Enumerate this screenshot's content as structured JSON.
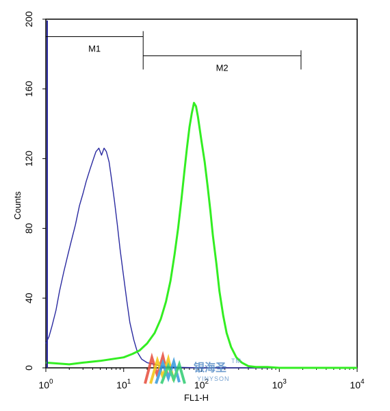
{
  "chart_data": {
    "type": "line",
    "title": "",
    "xlabel": "FL1-H",
    "ylabel": "Counts",
    "x_scale": "log",
    "xlim": [
      1,
      10000
    ],
    "ylim": [
      0,
      200
    ],
    "x_ticks": [
      {
        "base": "10",
        "exp": "0",
        "value": 1
      },
      {
        "base": "10",
        "exp": "1",
        "value": 10
      },
      {
        "base": "10",
        "exp": "2",
        "value": 100
      },
      {
        "base": "10",
        "exp": "3",
        "value": 1000
      },
      {
        "base": "10",
        "exp": "4",
        "value": 10000
      }
    ],
    "y_ticks": [
      "0",
      "40",
      "80",
      "120",
      "160",
      "200"
    ],
    "grid": false,
    "markers": [
      {
        "label": "M1",
        "x_start": 1,
        "x_end": 17.8,
        "y": 190
      },
      {
        "label": "M2",
        "x_start": 17.8,
        "x_end": 1900,
        "y": 179
      }
    ],
    "series": [
      {
        "color": "#2a2aa0",
        "points": [
          [
            1,
            14
          ],
          [
            1.1,
            18
          ],
          [
            1.2,
            24
          ],
          [
            1.35,
            33
          ],
          [
            1.5,
            44
          ],
          [
            1.7,
            55
          ],
          [
            1.9,
            64
          ],
          [
            2.1,
            72
          ],
          [
            2.4,
            82
          ],
          [
            2.7,
            93
          ],
          [
            3.0,
            100
          ],
          [
            3.3,
            107
          ],
          [
            3.7,
            114
          ],
          [
            4.1,
            120
          ],
          [
            4.4,
            124
          ],
          [
            4.8,
            126
          ],
          [
            5.2,
            122
          ],
          [
            5.6,
            126
          ],
          [
            6.0,
            124
          ],
          [
            6.5,
            118
          ],
          [
            7.0,
            108
          ],
          [
            7.6,
            96
          ],
          [
            8.3,
            82
          ],
          [
            9.0,
            68
          ],
          [
            10,
            52
          ],
          [
            11,
            38
          ],
          [
            12,
            26
          ],
          [
            13.5,
            16
          ],
          [
            15,
            9
          ],
          [
            17,
            5
          ],
          [
            20,
            3
          ],
          [
            25,
            2
          ],
          [
            30,
            1
          ],
          [
            40,
            0.5
          ],
          [
            60,
            0.2
          ],
          [
            100,
            0
          ],
          [
            10000,
            0
          ]
        ]
      },
      {
        "color": "#33ee22",
        "points": [
          [
            1,
            3
          ],
          [
            2,
            2
          ],
          [
            3,
            3
          ],
          [
            5,
            4
          ],
          [
            7,
            5
          ],
          [
            10,
            6
          ],
          [
            13,
            8
          ],
          [
            16,
            10
          ],
          [
            20,
            14
          ],
          [
            25,
            20
          ],
          [
            30,
            28
          ],
          [
            35,
            38
          ],
          [
            40,
            50
          ],
          [
            45,
            65
          ],
          [
            50,
            80
          ],
          [
            55,
            96
          ],
          [
            60,
            112
          ],
          [
            65,
            126
          ],
          [
            70,
            138
          ],
          [
            75,
            146
          ],
          [
            80,
            152
          ],
          [
            85,
            150
          ],
          [
            90,
            144
          ],
          [
            100,
            130
          ],
          [
            110,
            118
          ],
          [
            120,
            104
          ],
          [
            130,
            90
          ],
          [
            140,
            76
          ],
          [
            155,
            60
          ],
          [
            170,
            44
          ],
          [
            190,
            30
          ],
          [
            210,
            20
          ],
          [
            240,
            12
          ],
          [
            280,
            6
          ],
          [
            330,
            3
          ],
          [
            400,
            1
          ],
          [
            500,
            0.5
          ],
          [
            700,
            0.5
          ],
          [
            1000,
            0
          ],
          [
            10000,
            0
          ]
        ]
      }
    ]
  },
  "logo": {
    "text": "银海圣",
    "tm": "TM",
    "sub": "YINYSON"
  }
}
